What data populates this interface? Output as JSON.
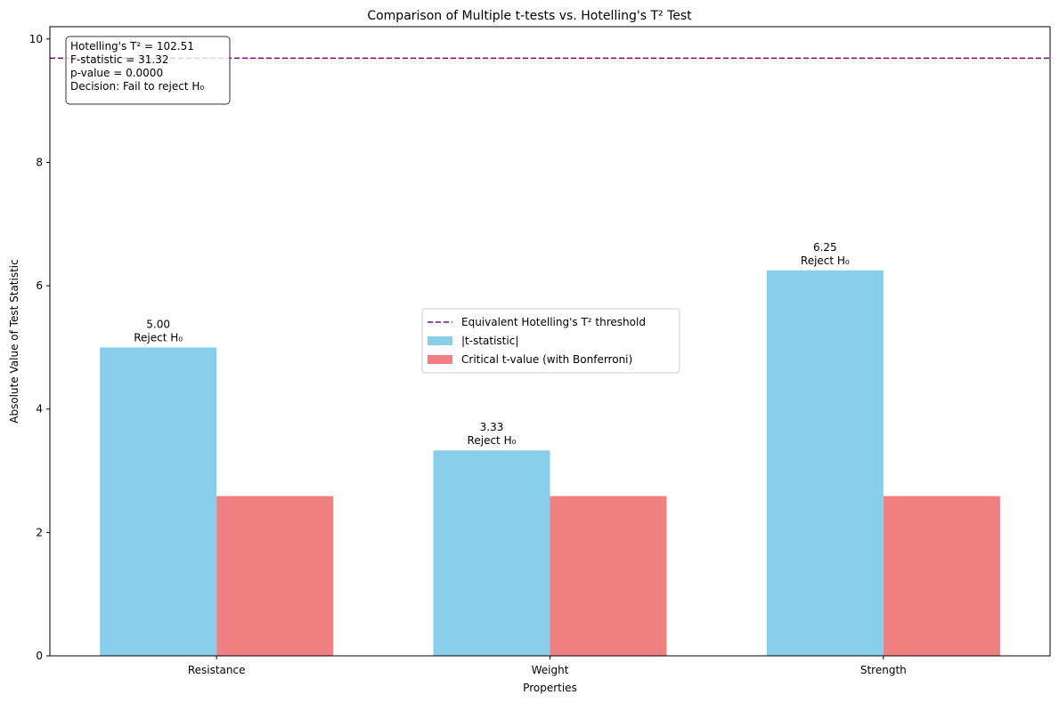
{
  "chart_data": {
    "type": "bar",
    "title": "Comparison of Multiple t-tests vs. Hotelling's T² Test",
    "xlabel": "Properties",
    "ylabel": "Absolute Value of Test Statistic",
    "ylim": [
      0,
      10.2
    ],
    "yticks": [
      0,
      2,
      4,
      6,
      8,
      10
    ],
    "categories": [
      "Resistance",
      "Weight",
      "Strength"
    ],
    "series": [
      {
        "name": "|t-statistic|",
        "values": [
          5.0,
          3.33,
          6.25
        ],
        "color": "#87CEEB"
      },
      {
        "name": "Critical t-value (with Bonferroni)",
        "values": [
          2.59,
          2.59,
          2.59
        ],
        "color": "#F08080"
      }
    ],
    "bar_labels": [
      {
        "value": "5.00",
        "decision": "Reject H₀"
      },
      {
        "value": "3.33",
        "decision": "Reject H₀"
      },
      {
        "value": "6.25",
        "decision": "Reject H₀"
      }
    ],
    "threshold": {
      "name": "Equivalent Hotelling's T² threshold",
      "value": 9.69,
      "color": "#800080",
      "style": "dashed"
    },
    "legend_placement": "center",
    "grid": false,
    "stats_box": {
      "lines": [
        "Hotelling's T² = 102.51",
        "F-statistic = 31.32",
        "p-value = 0.0000",
        "Decision: Fail to reject H₀"
      ],
      "placement": "top-left"
    }
  }
}
